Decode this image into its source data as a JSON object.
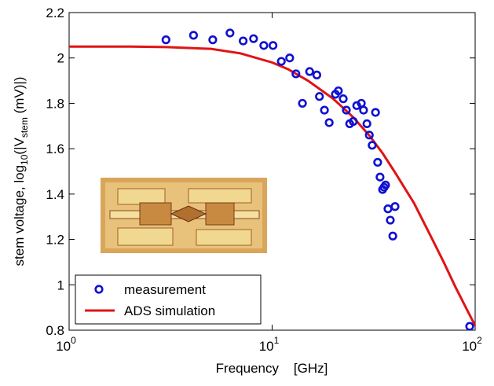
{
  "chart_data": {
    "type": "scatter-line",
    "xlabel": "Frequency    [GHz]",
    "ylabel_parts": [
      "stem voltage, log",
      "10",
      "(|V",
      "stem",
      " (mV)|)"
    ],
    "xscale": "log",
    "xlim": [
      1,
      100
    ],
    "ylim": [
      0.8,
      2.2
    ],
    "xticks": [
      {
        "value": 1,
        "label": "10",
        "exponent": "0"
      },
      {
        "value": 10,
        "label": "10",
        "exponent": "1"
      },
      {
        "value": 100,
        "label": "10",
        "exponent": "2"
      }
    ],
    "yticks": [
      0.8,
      1,
      1.2,
      1.4,
      1.6,
      1.8,
      2,
      2.2
    ],
    "legend": "lower left",
    "series": [
      {
        "name": "measurement",
        "kind": "scatter",
        "color": "#1010d0",
        "x": [
          3.0,
          4.1,
          5.1,
          6.2,
          7.2,
          8.1,
          9.1,
          10.1,
          11.1,
          12.2,
          13.1,
          14.1,
          15.3,
          16.6,
          17.1,
          18.1,
          19.1,
          20.5,
          21.2,
          22.4,
          23.2,
          24.1,
          25.1,
          26.1,
          27.5,
          28.2,
          29.3,
          30.1,
          31.1,
          32.3,
          33.1,
          34.0,
          35.0,
          35.6,
          36.2,
          37.2,
          38.2,
          39.3,
          40.3,
          94
        ],
        "values": [
          2.08,
          2.1,
          2.08,
          2.11,
          2.075,
          2.085,
          2.055,
          2.055,
          1.985,
          2.0,
          1.93,
          1.8,
          1.94,
          1.925,
          1.83,
          1.77,
          1.715,
          1.84,
          1.855,
          1.82,
          1.77,
          1.71,
          1.72,
          1.79,
          1.8,
          1.77,
          1.71,
          1.66,
          1.615,
          1.76,
          1.54,
          1.475,
          1.42,
          1.43,
          1.44,
          1.335,
          1.285,
          1.215,
          1.345,
          0.817
        ]
      },
      {
        "name": "ADS simulation",
        "kind": "line",
        "color": "#e01414",
        "x": [
          1,
          2,
          3,
          5,
          7,
          10,
          12,
          15,
          20,
          25,
          30,
          35,
          40,
          50,
          60,
          70,
          80,
          90,
          100
        ],
        "values": [
          2.05,
          2.05,
          2.048,
          2.04,
          2.02,
          1.98,
          1.95,
          1.9,
          1.82,
          1.74,
          1.66,
          1.58,
          1.5,
          1.36,
          1.22,
          1.1,
          0.99,
          0.9,
          0.82
        ]
      }
    ]
  }
}
